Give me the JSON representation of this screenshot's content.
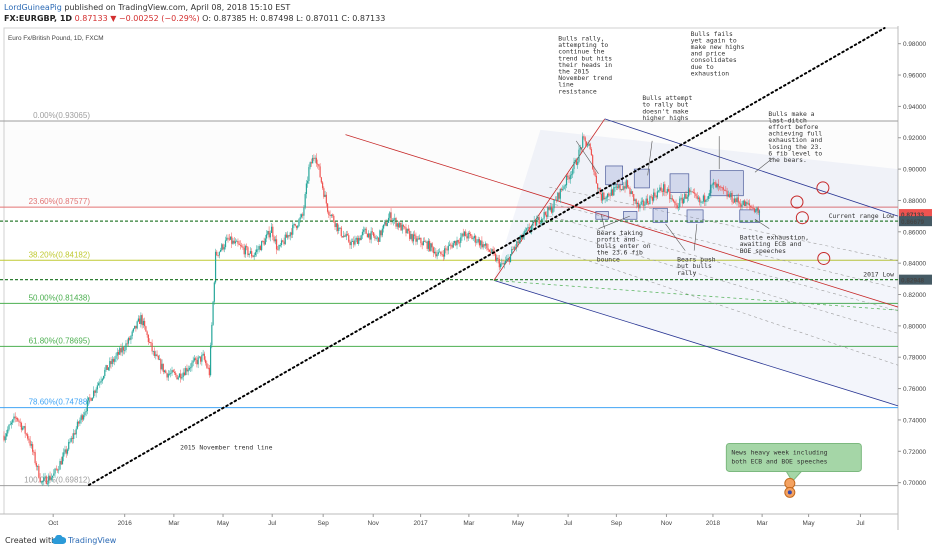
{
  "header": {
    "user": "LordGuineaPig",
    "published": "published on TradingView.com, April 08, 2018 15:10 EST",
    "symbol": "FX:EURGBP, 1D",
    "price": "0.87133",
    "change": "▼ −0.00252 (−0.29%)",
    "ohlc": "O: 0.87385 H: 0.87498 L: 0.87011 C: 0.87133"
  },
  "footer": {
    "created_with": "Created with",
    "brand": "TradingView"
  },
  "colors": {
    "up": "#26a69a",
    "down": "#ef5350",
    "fib_gray": "#9e9e9e",
    "fib_red": "#e57373",
    "fib_olive": "#c0ca33",
    "fib_green": "#4caf50",
    "fib_blue": "#42a5f5",
    "trend": "#000000",
    "channel_red": "#c62828",
    "channel_blue": "#283593"
  },
  "chart_data": {
    "type": "candlestick",
    "title": "Euro Fx/British Pound, 1D, FXCM",
    "xlabels": [
      "Oct",
      "2016",
      "Mar",
      "May",
      "Jul",
      "Sep",
      "Nov",
      "2017",
      "Mar",
      "May",
      "Jul",
      "Sep",
      "Nov",
      "2018",
      "Mar",
      "May",
      "Jul"
    ],
    "ylim": [
      0.68,
      0.99
    ],
    "y_ticks": [
      0.7,
      0.72,
      0.74,
      0.76,
      0.78,
      0.8,
      0.82,
      0.84,
      0.86,
      0.88,
      0.9,
      0.92,
      0.94,
      0.96,
      0.98
    ],
    "price_path": [
      [
        0,
        0.73
      ],
      [
        10,
        0.742
      ],
      [
        20,
        0.728
      ],
      [
        30,
        0.7
      ],
      [
        40,
        0.705
      ],
      [
        50,
        0.72
      ],
      [
        60,
        0.738
      ],
      [
        70,
        0.755
      ],
      [
        80,
        0.77
      ],
      [
        90,
        0.78
      ],
      [
        100,
        0.79
      ],
      [
        110,
        0.805
      ],
      [
        120,
        0.782
      ],
      [
        130,
        0.77
      ],
      [
        140,
        0.768
      ],
      [
        150,
        0.775
      ],
      [
        160,
        0.78
      ],
      [
        165,
        0.77
      ],
      [
        170,
        0.845
      ],
      [
        180,
        0.855
      ],
      [
        190,
        0.85
      ],
      [
        200,
        0.845
      ],
      [
        210,
        0.855
      ],
      [
        215,
        0.862
      ],
      [
        220,
        0.848
      ],
      [
        230,
        0.86
      ],
      [
        240,
        0.87
      ],
      [
        245,
        0.9
      ],
      [
        250,
        0.91
      ],
      [
        255,
        0.892
      ],
      [
        260,
        0.875
      ],
      [
        270,
        0.86
      ],
      [
        280,
        0.852
      ],
      [
        290,
        0.86
      ],
      [
        300,
        0.855
      ],
      [
        310,
        0.87
      ],
      [
        320,
        0.862
      ],
      [
        330,
        0.855
      ],
      [
        340,
        0.852
      ],
      [
        350,
        0.845
      ],
      [
        360,
        0.852
      ],
      [
        370,
        0.858
      ],
      [
        380,
        0.855
      ],
      [
        390,
        0.848
      ],
      [
        400,
        0.838
      ],
      [
        405,
        0.842
      ],
      [
        410,
        0.85
      ],
      [
        420,
        0.86
      ],
      [
        430,
        0.868
      ],
      [
        440,
        0.875
      ],
      [
        450,
        0.89
      ],
      [
        460,
        0.905
      ],
      [
        465,
        0.918
      ],
      [
        470,
        0.915
      ],
      [
        475,
        0.895
      ],
      [
        480,
        0.882
      ],
      [
        490,
        0.886
      ],
      [
        500,
        0.89
      ],
      [
        510,
        0.875
      ],
      [
        520,
        0.882
      ],
      [
        530,
        0.888
      ],
      [
        540,
        0.876
      ],
      [
        550,
        0.885
      ],
      [
        560,
        0.878
      ],
      [
        570,
        0.89
      ],
      [
        580,
        0.884
      ],
      [
        590,
        0.879
      ],
      [
        600,
        0.876
      ],
      [
        607,
        0.873
      ]
    ],
    "fib_levels": [
      {
        "label": "0.00%(0.93065)",
        "value": 0.93065
      },
      {
        "label": "23.60%(0.87577)",
        "value": 0.87577
      },
      {
        "label": "38.20%(0.84182)",
        "value": 0.84182
      },
      {
        "label": "50.00%(0.81438)",
        "value": 0.81438
      },
      {
        "label": "61.80%(0.78695)",
        "value": 0.78695
      },
      {
        "label": "78.60%(0.74788)",
        "value": 0.74788
      },
      {
        "label": "100.00%(0.69812)",
        "value": 0.69812
      }
    ],
    "price_tags": [
      {
        "label": "0.87133",
        "value": 0.87133,
        "color": "#ef5350"
      },
      {
        "label": "0.86679",
        "value": 0.86679,
        "color": "#455a64"
      },
      {
        "label": "0.82948",
        "value": 0.82948,
        "color": "#455a64"
      }
    ],
    "hlines": [
      {
        "label": "Current range Low",
        "value": 0.86679
      },
      {
        "label": "2017 Low",
        "value": 0.82948
      }
    ],
    "annotations": [
      {
        "text": [
          "Bulls rally,",
          "attempting to",
          "continue the",
          "trend but hits",
          "their heads in",
          "the 2015",
          "November trend",
          "line",
          "resistance"
        ],
        "date": 0.62,
        "price": 0.982
      },
      {
        "text": [
          "Bulls attempt",
          "to rally but",
          "doesn't make",
          "higher highs"
        ],
        "date": 0.714,
        "price": 0.944
      },
      {
        "text": [
          "Bulls fails",
          "yet again to",
          "make new highs",
          "and price",
          "consolidates",
          "due to",
          "exhaustion"
        ],
        "date": 0.768,
        "price": 0.985
      },
      {
        "text": [
          "Bulls make a",
          "last-ditch",
          "effort before",
          "achieving full",
          "exhaustion and",
          "losing the 23.",
          "6 fib level to",
          "the bears."
        ],
        "date": 0.855,
        "price": 0.934
      },
      {
        "text": [
          "Bears taking",
          "profit and",
          "bulls enter on",
          "the 23.6 fib",
          "bounce"
        ],
        "date": 0.663,
        "price": 0.858
      },
      {
        "text": [
          "Bears push",
          "but bulls",
          "rally"
        ],
        "date": 0.753,
        "price": 0.841
      },
      {
        "text": [
          "Battle exhaustion,",
          "awaiting ECB and",
          "BOE speeches"
        ],
        "date": 0.823,
        "price": 0.855
      },
      {
        "text": [
          "2015 November trend line"
        ],
        "date": 0.197,
        "price": 0.721
      }
    ],
    "callout": [
      "News heavy week including",
      "both ECB and BOE speeches"
    ]
  }
}
